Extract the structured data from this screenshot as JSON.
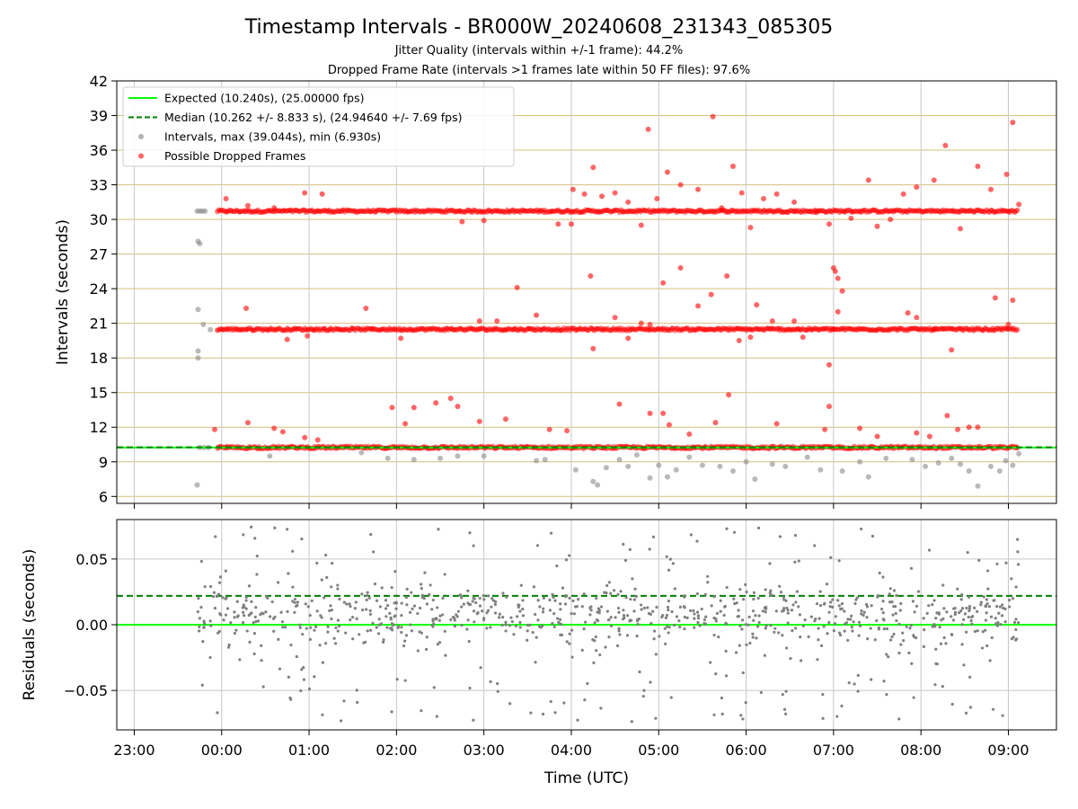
{
  "chart_data": {
    "title": "Timestamp Intervals - BR000W_20240608_231343_085305",
    "subtitles": [
      "Jitter Quality (intervals within +/-1 frame): 44.2%",
      "Dropped Frame Rate (intervals >1 frames late within 50 FF files): 97.6%"
    ],
    "xlabel": "Time (UTC)",
    "x_ticks": [
      "23:00",
      "00:00",
      "01:00",
      "02:00",
      "03:00",
      "04:00",
      "05:00",
      "06:00",
      "07:00",
      "08:00",
      "09:00"
    ],
    "top_panel": {
      "type": "scatter",
      "ylabel": "Intervals (seconds)",
      "ylim": [
        5.4,
        42
      ],
      "y_ticks": [
        6,
        9,
        12,
        15,
        18,
        21,
        24,
        27,
        30,
        33,
        36,
        39,
        42
      ],
      "grid": "horizontal and vertical",
      "legend_position": "top-left",
      "expected_interval": 10.24,
      "median_interval": 10.262,
      "legend": [
        {
          "label": "Expected (10.240s), (25.00000 fps)",
          "color": "#00ff00",
          "style": "solid-line"
        },
        {
          "label": "Median (10.262 +/- 8.833 s), (24.94640 +/- 7.69 fps)",
          "color": "#008000",
          "style": "dashed-line"
        },
        {
          "label": "Intervals, max (39.044s), min (6.930s)",
          "color": "#808080",
          "style": "marker"
        },
        {
          "label": "Possible Dropped Frames",
          "color": "#ff0000",
          "style": "marker"
        }
      ],
      "series": [
        {
          "kind": "intervals",
          "color": "#808080",
          "points": [
            [
              -0.28,
              30.72
            ],
            [
              -0.25,
              30.72
            ],
            [
              -0.22,
              30.72
            ],
            [
              -0.19,
              30.72
            ],
            [
              -0.27,
              28.1
            ],
            [
              -0.25,
              27.9
            ],
            [
              -0.27,
              22.2
            ],
            [
              -0.21,
              20.9
            ],
            [
              -0.27,
              18.6
            ],
            [
              -0.27,
              18.0
            ],
            [
              -0.28,
              7.0
            ],
            [
              -0.25,
              10.24
            ],
            [
              -0.2,
              10.24
            ],
            [
              -0.15,
              10.24
            ],
            [
              -0.13,
              20.45
            ],
            [
              0.05,
              10.24
            ],
            [
              0.55,
              9.5
            ],
            [
              1.6,
              9.8
            ],
            [
              1.9,
              9.3
            ],
            [
              2.2,
              9.2
            ],
            [
              2.5,
              9.3
            ],
            [
              2.7,
              9.5
            ],
            [
              3.0,
              9.5
            ],
            [
              3.6,
              9.1
            ],
            [
              3.7,
              9.2
            ],
            [
              4.05,
              8.3
            ],
            [
              4.25,
              7.3
            ],
            [
              4.3,
              7.0
            ],
            [
              4.4,
              8.5
            ],
            [
              4.55,
              9.2
            ],
            [
              4.65,
              8.6
            ],
            [
              4.75,
              9.6
            ],
            [
              4.9,
              7.6
            ],
            [
              5.0,
              8.7
            ],
            [
              5.1,
              7.7
            ],
            [
              5.2,
              8.3
            ],
            [
              5.35,
              9.4
            ],
            [
              5.5,
              8.7
            ],
            [
              5.7,
              8.6
            ],
            [
              5.85,
              8.2
            ],
            [
              6.0,
              9.0
            ],
            [
              6.1,
              7.5
            ],
            [
              6.3,
              8.8
            ],
            [
              6.45,
              8.6
            ],
            [
              6.7,
              9.4
            ],
            [
              6.85,
              8.3
            ],
            [
              7.1,
              8.2
            ],
            [
              7.3,
              9.0
            ],
            [
              7.4,
              7.7
            ],
            [
              7.6,
              9.3
            ],
            [
              7.9,
              9.2
            ],
            [
              8.05,
              8.6
            ],
            [
              8.2,
              8.9
            ],
            [
              8.35,
              9.3
            ],
            [
              8.45,
              8.8
            ],
            [
              8.55,
              8.2
            ],
            [
              8.65,
              6.9
            ],
            [
              8.8,
              8.6
            ],
            [
              8.9,
              8.2
            ],
            [
              8.97,
              9.1
            ],
            [
              9.05,
              8.7
            ],
            [
              9.1,
              10.24
            ],
            [
              9.12,
              9.7
            ]
          ]
        },
        {
          "kind": "dropped",
          "color": "#ff0000",
          "bands": [
            {
              "y": 30.72,
              "from": -0.05,
              "to": 9.1
            },
            {
              "y": 20.48,
              "from": -0.05,
              "to": 9.1
            },
            {
              "y": 10.24,
              "from": -0.05,
              "to": 9.1
            }
          ],
          "points": [
            [
              0.05,
              31.8
            ],
            [
              0.3,
              31.2
            ],
            [
              0.6,
              31.0
            ],
            [
              0.95,
              32.3
            ],
            [
              1.15,
              32.2
            ],
            [
              4.02,
              32.6
            ],
            [
              4.15,
              32.2
            ],
            [
              4.25,
              34.5
            ],
            [
              4.35,
              32.0
            ],
            [
              4.5,
              32.3
            ],
            [
              4.65,
              31.5
            ],
            [
              4.8,
              29.5
            ],
            [
              4.88,
              37.8
            ],
            [
              4.98,
              31.8
            ],
            [
              5.1,
              34.1
            ],
            [
              5.25,
              33.0
            ],
            [
              5.45,
              32.6
            ],
            [
              5.62,
              38.9
            ],
            [
              5.72,
              31.0
            ],
            [
              5.85,
              34.6
            ],
            [
              5.95,
              32.3
            ],
            [
              6.05,
              29.3
            ],
            [
              6.2,
              31.8
            ],
            [
              6.35,
              32.2
            ],
            [
              6.55,
              31.5
            ],
            [
              6.8,
              30.6
            ],
            [
              6.95,
              29.6
            ],
            [
              7.2,
              30.1
            ],
            [
              7.4,
              33.4
            ],
            [
              7.5,
              29.4
            ],
            [
              7.65,
              30.0
            ],
            [
              7.8,
              32.2
            ],
            [
              7.95,
              32.8
            ],
            [
              8.15,
              33.4
            ],
            [
              8.28,
              36.4
            ],
            [
              8.45,
              29.2
            ],
            [
              8.65,
              34.6
            ],
            [
              8.8,
              32.6
            ],
            [
              8.98,
              33.9
            ],
            [
              9.05,
              38.4
            ],
            [
              9.12,
              31.3
            ],
            [
              4.0,
              29.6
            ],
            [
              3.85,
              29.6
            ],
            [
              3.0,
              29.9
            ],
            [
              2.75,
              29.8
            ],
            [
              0.28,
              22.3
            ],
            [
              0.75,
              19.6
            ],
            [
              0.98,
              19.9
            ],
            [
              1.65,
              22.3
            ],
            [
              2.05,
              19.7
            ],
            [
              2.95,
              21.2
            ],
            [
              3.15,
              21.2
            ],
            [
              3.38,
              24.1
            ],
            [
              3.6,
              21.7
            ],
            [
              4.22,
              25.1
            ],
            [
              4.25,
              18.8
            ],
            [
              4.5,
              21.5
            ],
            [
              4.65,
              19.7
            ],
            [
              4.8,
              21.0
            ],
            [
              4.9,
              20.9
            ],
            [
              5.05,
              24.5
            ],
            [
              5.25,
              25.8
            ],
            [
              5.45,
              22.5
            ],
            [
              5.6,
              23.5
            ],
            [
              5.78,
              25.1
            ],
            [
              5.92,
              19.5
            ],
            [
              6.05,
              19.8
            ],
            [
              6.12,
              22.6
            ],
            [
              6.3,
              21.2
            ],
            [
              6.55,
              21.2
            ],
            [
              6.65,
              19.8
            ],
            [
              6.95,
              17.4
            ],
            [
              7.0,
              25.8
            ],
            [
              7.02,
              25.5
            ],
            [
              7.05,
              24.9
            ],
            [
              7.1,
              23.8
            ],
            [
              7.0,
              20.5
            ],
            [
              7.05,
              22.0
            ],
            [
              7.85,
              21.9
            ],
            [
              7.95,
              21.5
            ],
            [
              8.15,
              20.5
            ],
            [
              8.35,
              18.7
            ],
            [
              8.85,
              23.2
            ],
            [
              9.0,
              20.9
            ],
            [
              9.05,
              23.0
            ],
            [
              -0.08,
              11.8
            ],
            [
              0.3,
              12.4
            ],
            [
              0.6,
              11.9
            ],
            [
              0.7,
              11.6
            ],
            [
              0.95,
              11.1
            ],
            [
              1.1,
              10.9
            ],
            [
              1.95,
              13.7
            ],
            [
              2.1,
              12.3
            ],
            [
              2.2,
              13.7
            ],
            [
              2.45,
              14.1
            ],
            [
              2.62,
              14.5
            ],
            [
              2.7,
              13.8
            ],
            [
              2.95,
              12.5
            ],
            [
              3.25,
              12.7
            ],
            [
              3.75,
              11.8
            ],
            [
              3.95,
              11.7
            ],
            [
              4.55,
              14.0
            ],
            [
              4.9,
              13.2
            ],
            [
              5.05,
              13.2
            ],
            [
              5.12,
              12.2
            ],
            [
              5.35,
              11.4
            ],
            [
              5.65,
              12.4
            ],
            [
              5.8,
              14.8
            ],
            [
              6.35,
              12.3
            ],
            [
              6.9,
              11.8
            ],
            [
              6.95,
              13.8
            ],
            [
              7.3,
              11.9
            ],
            [
              7.5,
              11.2
            ],
            [
              7.95,
              11.5
            ],
            [
              8.1,
              11.2
            ],
            [
              8.3,
              13.0
            ],
            [
              8.42,
              11.8
            ],
            [
              8.55,
              12.0
            ],
            [
              8.65,
              12.0
            ]
          ]
        }
      ]
    },
    "bottom_panel": {
      "type": "scatter",
      "ylabel": "Residuals (seconds)",
      "ylim": [
        -0.08,
        0.08
      ],
      "y_ticks": [
        -0.05,
        0.0,
        0.05
      ],
      "y_tick_labels": [
        "−0.05",
        "0.00",
        "0.05"
      ],
      "expected_residual": 0.0,
      "median_residual": 0.022,
      "point_color": "#808080",
      "x_range": [
        -0.3,
        9.12
      ],
      "approx_point_count": 950
    },
    "colors": {
      "expected": "#00ff00",
      "median": "#008000",
      "interval": "#808080",
      "dropped": "#ff0000",
      "hgrid_top": "#d4bf7e",
      "grid": "#c8c8c8"
    }
  }
}
